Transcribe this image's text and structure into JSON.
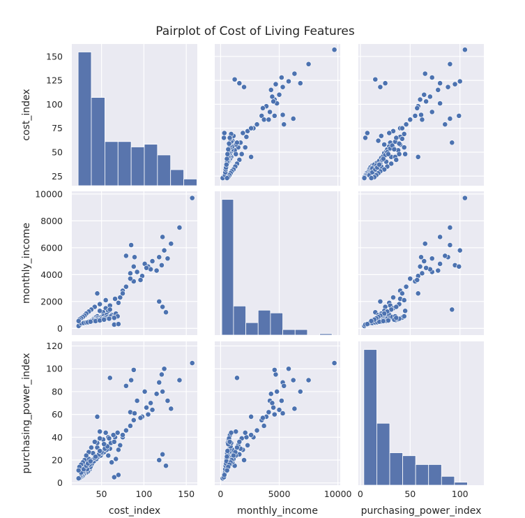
{
  "chart_data": {
    "type": "pairplot",
    "title": "Pairplot of Cost of Living Features",
    "variables": [
      "cost_index",
      "monthly_income",
      "purchasing_power_index"
    ],
    "colors": {
      "background": "#eaeaf2",
      "grid": "#ffffff",
      "marker": "#4c72b0",
      "bar": "#5975ad"
    },
    "grid": true,
    "axes": {
      "cost_index": {
        "range": [
          15,
          163
        ],
        "ticks": [
          50,
          100,
          150
        ],
        "y_ticks": [
          25,
          50,
          75,
          100,
          125,
          150
        ]
      },
      "monthly_income": {
        "range": [
          -500,
          10200
        ],
        "ticks": [
          0,
          5000,
          10000
        ],
        "y_ticks": [
          0,
          2000,
          4000,
          6000,
          8000,
          10000
        ]
      },
      "purchasing_power_index": {
        "range": [
          -2,
          124
        ],
        "ticks": [
          0,
          50,
          100
        ],
        "y_ticks": [
          0,
          20,
          40,
          60,
          80,
          100,
          120
        ]
      }
    },
    "histograms": {
      "cost_index": {
        "bin_edges": [
          22.5,
          38.0,
          54.0,
          69.5,
          85.0,
          100.5,
          116.0,
          131.5,
          147.0,
          162.5
        ],
        "counts": [
          100,
          66,
          33,
          33,
          29,
          31,
          23,
          12,
          5
        ]
      },
      "monthly_income": {
        "bin_edges": [
          100,
          1100,
          2150,
          3200,
          4250,
          5300,
          6350,
          7400,
          8450,
          9500
        ],
        "counts": [
          98,
          21,
          9,
          18,
          16,
          4,
          4,
          0,
          1
        ]
      },
      "purchasing_power_index": {
        "bin_edges": [
          3.5,
          16.5,
          29.5,
          42.5,
          55.5,
          68.5,
          81.5,
          94.5,
          107.5,
          120.5
        ],
        "counts": [
          46,
          21,
          11,
          10,
          7,
          7,
          3,
          1,
          0
        ]
      }
    },
    "points": [
      [
        157,
        9700,
        105
      ],
      [
        142,
        7500,
        90
      ],
      [
        132,
        6300,
        65
      ],
      [
        122,
        6800,
        80
      ],
      [
        124,
        5800,
        100
      ],
      [
        118,
        5300,
        88
      ],
      [
        128,
        5200,
        72
      ],
      [
        121,
        4700,
        95
      ],
      [
        115,
        4300,
        78
      ],
      [
        110,
        5000,
        64
      ],
      [
        105,
        4600,
        60
      ],
      [
        98,
        3900,
        58
      ],
      [
        92,
        4200,
        72
      ],
      [
        88,
        3500,
        55
      ],
      [
        84,
        3700,
        50
      ],
      [
        79,
        3100,
        46
      ],
      [
        75,
        2800,
        40
      ],
      [
        72,
        2300,
        33
      ],
      [
        70,
        1900,
        29
      ],
      [
        75,
        2600,
        42
      ],
      [
        84,
        4100,
        62
      ],
      [
        96,
        3600,
        57
      ],
      [
        101,
        4800,
        80
      ],
      [
        108,
        4400,
        70
      ],
      [
        103,
        4500,
        66
      ],
      [
        88,
        4600,
        99
      ],
      [
        85,
        6200,
        90
      ],
      [
        89,
        5300,
        61
      ],
      [
        79,
        5400,
        85
      ],
      [
        118,
        2000,
        20
      ],
      [
        122,
        1600,
        25
      ],
      [
        126,
        1200,
        15
      ],
      [
        66,
        2200,
        40
      ],
      [
        60,
        1700,
        30
      ],
      [
        55,
        1500,
        33
      ],
      [
        52,
        1200,
        28
      ],
      [
        58,
        1300,
        24
      ],
      [
        62,
        1000,
        18
      ],
      [
        67,
        1100,
        21
      ],
      [
        48,
        1300,
        45
      ],
      [
        45,
        900,
        31
      ],
      [
        43,
        800,
        22
      ],
      [
        40,
        700,
        18
      ],
      [
        38,
        600,
        15
      ],
      [
        36,
        550,
        12
      ],
      [
        34,
        500,
        10
      ],
      [
        32,
        450,
        9
      ],
      [
        30,
        400,
        8
      ],
      [
        29,
        380,
        7
      ],
      [
        28,
        350,
        6
      ],
      [
        27,
        330,
        6
      ],
      [
        26,
        300,
        5
      ],
      [
        25,
        250,
        5
      ],
      [
        24,
        220,
        4
      ],
      [
        23,
        180,
        4
      ],
      [
        35,
        520,
        13
      ],
      [
        37,
        580,
        14
      ],
      [
        39,
        620,
        17
      ],
      [
        41,
        660,
        19
      ],
      [
        44,
        700,
        21
      ],
      [
        46,
        760,
        23
      ],
      [
        49,
        820,
        24
      ],
      [
        51,
        880,
        26
      ],
      [
        53,
        950,
        27
      ],
      [
        56,
        1000,
        29
      ],
      [
        31,
        470,
        11
      ],
      [
        33,
        490,
        12
      ],
      [
        36,
        530,
        16
      ],
      [
        38,
        560,
        20
      ],
      [
        42,
        600,
        22
      ],
      [
        47,
        650,
        25
      ],
      [
        50,
        720,
        27
      ],
      [
        54,
        780,
        30
      ],
      [
        57,
        850,
        32
      ],
      [
        61,
        900,
        35
      ],
      [
        28,
        420,
        10
      ],
      [
        30,
        440,
        14
      ],
      [
        33,
        470,
        18
      ],
      [
        35,
        510,
        21
      ],
      [
        40,
        560,
        26
      ],
      [
        45,
        610,
        35
      ],
      [
        52,
        680,
        38
      ],
      [
        58,
        740,
        40
      ],
      [
        64,
        800,
        42
      ],
      [
        69,
        900,
        44
      ],
      [
        26,
        380,
        9
      ],
      [
        29,
        400,
        12
      ],
      [
        32,
        430,
        15
      ],
      [
        34,
        460,
        17
      ],
      [
        37,
        500,
        19
      ],
      [
        43,
        540,
        23
      ],
      [
        48,
        590,
        28
      ],
      [
        53,
        650,
        34
      ],
      [
        59,
        720,
        39
      ],
      [
        65,
        780,
        36
      ],
      [
        60,
        1400,
        92
      ],
      [
        65,
        280,
        5
      ],
      [
        70,
        320,
        7
      ],
      [
        45,
        2600,
        58
      ],
      [
        55,
        2100,
        44
      ],
      [
        48,
        1800,
        39
      ],
      [
        42,
        1600,
        36
      ],
      [
        38,
        1400,
        31
      ],
      [
        35,
        1250,
        27
      ],
      [
        32,
        1100,
        24
      ],
      [
        30,
        950,
        20
      ],
      [
        28,
        850,
        18
      ],
      [
        26,
        750,
        16
      ],
      [
        24,
        650,
        14
      ],
      [
        23,
        550,
        11
      ]
    ]
  }
}
